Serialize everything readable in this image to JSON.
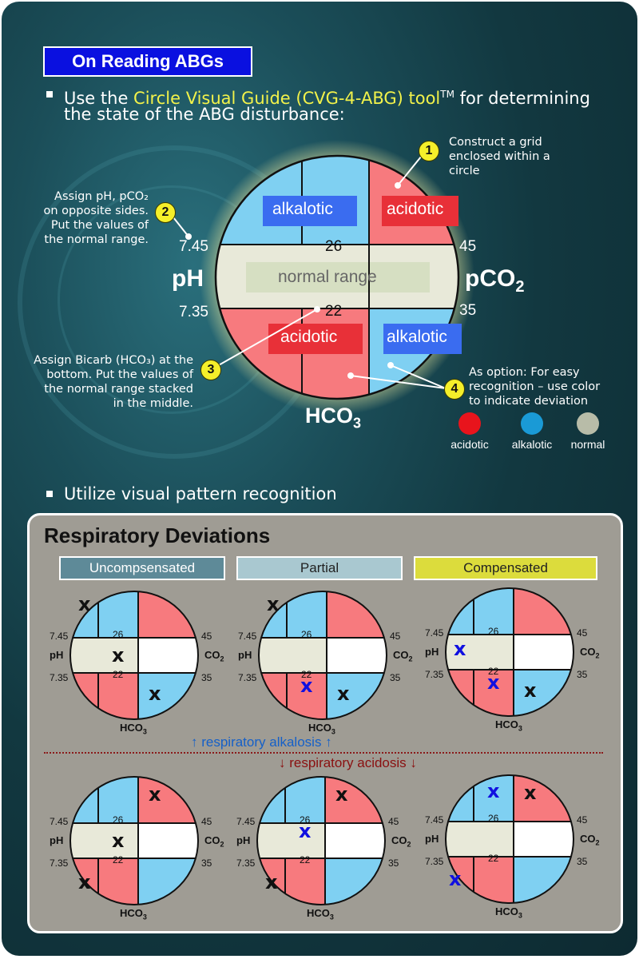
{
  "title": "On Reading ABGs",
  "bullet1": {
    "prefix": "Use the ",
    "tool_name": "Circle Visual Guide (CVG-4-ABG) tool",
    "tm": "TM",
    "suffix": " for determining",
    "line2": "the state of the ABG disturbance:"
  },
  "steps": [
    {
      "num": "1",
      "lines": [
        "Construct a grid",
        "enclosed within a",
        "circle"
      ]
    },
    {
      "num": "2",
      "lines": [
        "Assign pH, pCO₂",
        "on opposite sides.",
        "Put the values of",
        "the normal range."
      ]
    },
    {
      "num": "3",
      "lines": [
        "Assign Bicarb (HCO₃) at the",
        "bottom. Put the values of",
        "the normal range stacked",
        "in the middle."
      ]
    },
    {
      "num": "4",
      "lines": [
        "As option: For easy",
        "recognition – use color",
        "to indicate deviation"
      ]
    }
  ],
  "big_circle": {
    "tl": "alkalotic",
    "tr": "acidotic",
    "middle": "normal range",
    "bl": "acidotic",
    "br": "alkalotic",
    "hco3_high": "26",
    "hco3_low": "22",
    "ph_high": "7.45",
    "ph_low": "7.35",
    "pco2_high": "45",
    "pco2_low": "35",
    "ph_label": "pH",
    "pco2_label": "pCO",
    "pco2_sub": "2",
    "hco3_label": "HCO",
    "hco3_sub": "3"
  },
  "legend": [
    {
      "label": "acidotic",
      "color": "#e8141c"
    },
    {
      "label": "alkalotic",
      "color": "#1a9ad6"
    },
    {
      "label": "normal",
      "color": "#b8bca8"
    }
  ],
  "bullet2": "Utilize visual pattern recognition",
  "panel": {
    "heading": "Respiratory Deviations",
    "tabs": [
      "Uncompsensated",
      "Partial",
      "Compensated"
    ],
    "alkalosis_label": "↑ respiratory alkalosis ↑",
    "acidosis_label": "↓ respiratory acidosis ↓",
    "mini": {
      "ph_label": "pH",
      "co2_label": "CO",
      "co2_sub": "2",
      "hco3_label": "HCO",
      "hco3_sub": "3",
      "ph_high": "7.45",
      "ph_low": "7.35",
      "co2_high": "45",
      "co2_low": "35",
      "hco3_high": "26",
      "hco3_low": "22",
      "mark": "x"
    }
  },
  "colors": {
    "alkalotic_fill": "#7fd0f2",
    "acidotic_fill": "#f77a7e",
    "normal_fill": "#e8e9d9",
    "alk_label_bg": "#3a6cf0",
    "acid_label_bg": "#e83038",
    "tab_uncompensated": "#5e8a98",
    "tab_partial": "#a9c8d0",
    "tab_compensated": "#dcdc3c",
    "mark_black": "#111111",
    "mark_blue": "#1010e0"
  }
}
